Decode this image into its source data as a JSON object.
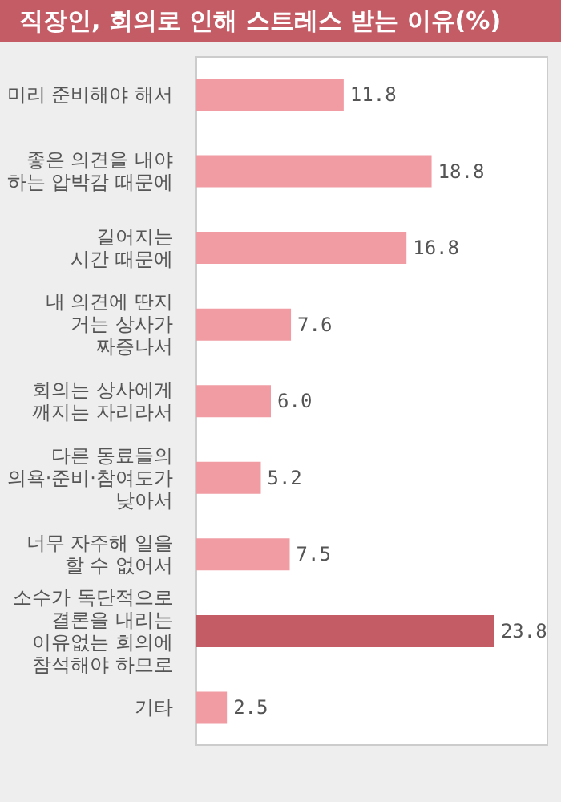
{
  "chart_data": {
    "type": "bar",
    "orientation": "horizontal",
    "title": "직장인, 회의로 인해 스트레스 받는 이유(%)",
    "categories": [
      "미리 준비해야 해서",
      "좋은 의견을 내야\n하는 압박감 때문에",
      "길어지는\n시간 때문에",
      "내 의견에 딴지\n거는 상사가\n짜증나서",
      "회의는 상사에게\n깨지는 자리라서",
      "다른 동료들의\n의욕·준비·참여도가\n낮아서",
      "너무 자주해 일을\n할 수 없어서",
      "소수가 독단적으로\n결론을 내리는\n이유없는 회의에\n참석해야 하므로",
      "기타"
    ],
    "values": [
      11.8,
      18.8,
      16.8,
      7.6,
      6.0,
      5.2,
      7.5,
      23.8,
      2.5
    ],
    "value_labels": [
      "11.8",
      "18.8",
      "16.8",
      "7.6",
      "6.0",
      "5.2",
      "7.5",
      "23.8",
      "2.5"
    ],
    "colors": [
      "#f19ca3",
      "#f19ca3",
      "#f19ca3",
      "#f19ca3",
      "#f19ca3",
      "#f19ca3",
      "#f19ca3",
      "#c45c66",
      "#f19ca3"
    ],
    "grid": false,
    "legend": false
  }
}
